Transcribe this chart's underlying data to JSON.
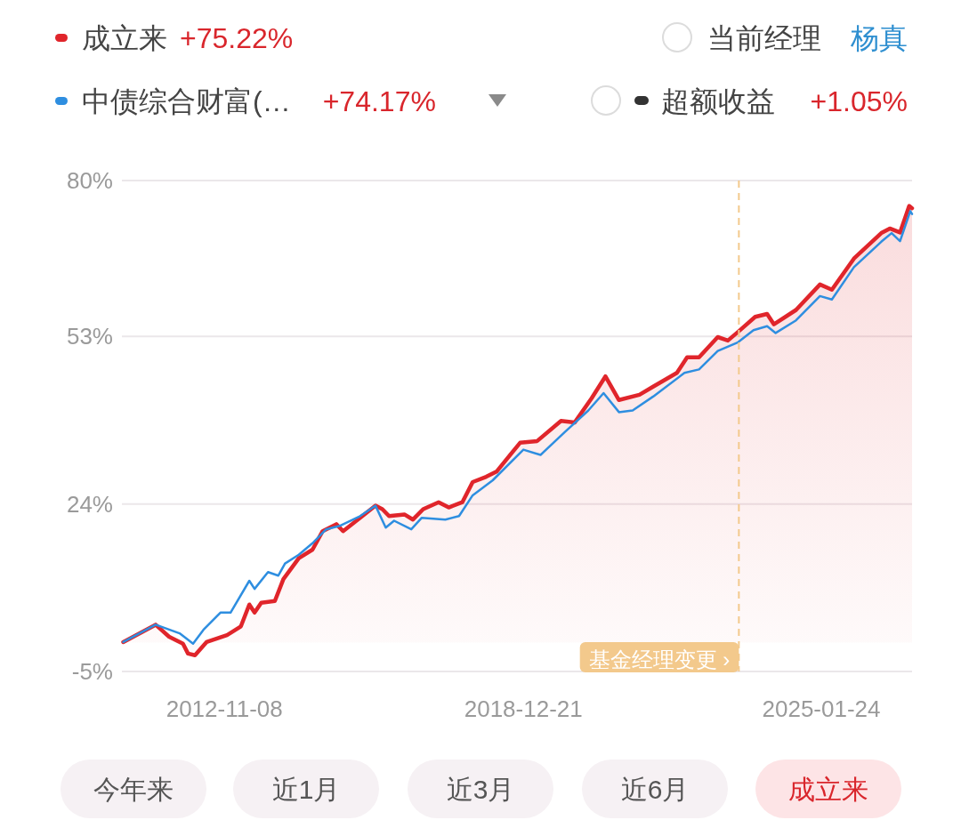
{
  "chart_data": {
    "type": "line",
    "legend": "top left",
    "grid": "y",
    "xlim": [
      "2010-10-04",
      "2026-12-03"
    ],
    "xticks": [
      {
        "value": "2012-11-08",
        "label": "2012-11-08"
      },
      {
        "value": "2018-12-21",
        "label": "2018-12-21"
      },
      {
        "value": "2025-01-24",
        "label": "2025-01-24"
      }
    ],
    "ylim": [
      -5,
      80
    ],
    "yticks": [
      {
        "value": -5,
        "label": "-5%"
      },
      {
        "value": 24,
        "label": "24%"
      },
      {
        "value": 53,
        "label": "53%"
      },
      {
        "value": 80,
        "label": "80%"
      }
    ],
    "ref_lines": [
      {
        "axis": "x",
        "value": "2023-05-19",
        "label": "基金经理变更 ›",
        "color": "#f3c98c",
        "line_style": "dashed"
      }
    ],
    "series": [
      {
        "name": "成立来",
        "color": "#e0252b",
        "type": "area",
        "x": [
          "2010-10-14",
          "2011-06-13",
          "2011-09-22",
          "2012-01-03",
          "2012-02-10",
          "2012-04-02",
          "2012-06-27",
          "2012-11-27",
          "2013-03-11",
          "2013-05-13",
          "2013-06-21",
          "2013-08-10",
          "2013-11-20",
          "2014-01-23",
          "2014-05-18",
          "2014-08-28",
          "2014-11-12",
          "2015-02-22",
          "2015-04-14",
          "2015-08-19",
          "2015-12-12",
          "2016-02-01",
          "2016-03-22",
          "2016-07-15",
          "2016-09-17",
          "2016-12-02",
          "2017-03-27",
          "2017-06-11",
          "2017-09-21",
          "2017-12-07",
          "2018-03-18",
          "2018-06-03",
          "2018-11-26",
          "2019-04-03",
          "2019-09-28",
          "2020-01-08",
          "2020-05-14",
          "2020-08-25",
          "2020-12-04",
          "2021-05-06",
          "2021-08-16",
          "2022-02-10",
          "2022-04-27",
          "2022-07-25",
          "2022-12-12",
          "2023-02-26",
          "2023-05-13",
          "2023-09-18",
          "2023-12-16",
          "2024-02-05",
          "2024-07-19",
          "2025-01-14",
          "2025-04-13",
          "2025-09-25",
          "2026-04-17",
          "2026-06-20",
          "2026-09-04",
          "2026-11-12",
          "2026-12-03"
        ],
        "values": [
          0.1,
          3.1,
          1.0,
          -0.2,
          -1.9,
          -2.2,
          0.1,
          1.3,
          2.8,
          6.6,
          5.2,
          6.9,
          7.2,
          11.0,
          14.6,
          16.1,
          19.3,
          20.5,
          19.3,
          21.6,
          23.7,
          23.1,
          21.9,
          22.2,
          21.3,
          23.1,
          24.3,
          23.4,
          24.3,
          27.8,
          28.7,
          29.6,
          34.6,
          34.9,
          38.4,
          38.1,
          42.3,
          46.1,
          42.0,
          42.9,
          44.3,
          46.7,
          49.4,
          49.4,
          52.9,
          52.3,
          53.8,
          56.4,
          56.9,
          55.1,
          57.6,
          62.0,
          61.1,
          66.5,
          70.9,
          71.7,
          71.0,
          75.6,
          75.2
        ]
      },
      {
        "name": "中债综合财富(…",
        "color": "#2e8ee0",
        "x": [
          "2010-10-14",
          "2011-06-13",
          "2011-12-09",
          "2012-03-19",
          "2012-06-04",
          "2012-10-09",
          "2012-12-24",
          "2013-05-13",
          "2013-06-21",
          "2013-09-30",
          "2013-12-16",
          "2014-02-04",
          "2014-05-18",
          "2014-08-28",
          "2014-12-08",
          "2015-03-19",
          "2015-08-19",
          "2015-12-12",
          "2016-02-26",
          "2016-04-29",
          "2016-09-04",
          "2016-11-20",
          "2017-05-17",
          "2017-08-27",
          "2017-12-07",
          "2018-05-06",
          "2018-12-21",
          "2019-04-28",
          "2019-10-24",
          "2020-04-19",
          "2020-08-11",
          "2020-12-04",
          "2021-03-16",
          "2021-08-16",
          "2022-04-07",
          "2022-07-25",
          "2022-12-12",
          "2023-05-13",
          "2023-09-05",
          "2023-12-16",
          "2024-02-18",
          "2024-07-19",
          "2025-01-14",
          "2025-04-13",
          "2025-09-25",
          "2026-04-17",
          "2026-07-03",
          "2026-09-04",
          "2026-11-20",
          "2026-12-03"
        ],
        "values": [
          0.1,
          3.1,
          1.6,
          -0.2,
          2.2,
          5.2,
          5.2,
          10.7,
          9.3,
          12.2,
          11.6,
          13.7,
          15.2,
          17.2,
          19.6,
          20.2,
          21.9,
          23.7,
          19.9,
          21.1,
          19.6,
          21.6,
          21.3,
          21.9,
          25.5,
          28.1,
          33.4,
          32.5,
          36.4,
          40.2,
          43.2,
          39.9,
          40.2,
          42.6,
          46.7,
          47.3,
          50.5,
          52.0,
          54.1,
          54.8,
          53.6,
          55.8,
          60.0,
          59.4,
          65.0,
          69.4,
          70.9,
          69.5,
          74.7,
          74.2
        ]
      }
    ],
    "annotations": [
      "+75.22%",
      "+74.17%",
      "当前经理",
      "杨真",
      "超额收益",
      "+1.05%",
      "今年来",
      "近1月",
      "近3月",
      "近6月",
      "成立来"
    ]
  }
}
